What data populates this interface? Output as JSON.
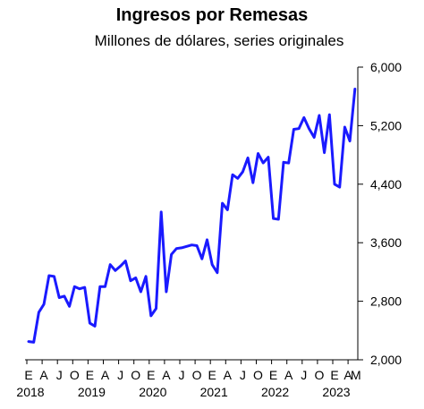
{
  "chart_data": {
    "type": "line",
    "title": "Ingresos por Remesas",
    "subtitle": "Millones de dólares, series originales",
    "xlabel": "",
    "ylabel": "",
    "ylim": [
      2000,
      6000
    ],
    "yticks": [
      2000,
      2800,
      3600,
      4400,
      5200,
      6000
    ],
    "ytick_labels": [
      "2,000",
      "2,800",
      "3,600",
      "4,400",
      "5,200",
      "6,000"
    ],
    "y_axis_side": "right",
    "grid": false,
    "legend": "none",
    "line_color": "#1a1aff",
    "x_month_labels": [
      "E",
      "A",
      "J",
      "O",
      "E",
      "A",
      "J",
      "O",
      "E",
      "A",
      "J",
      "O",
      "E",
      "A",
      "J",
      "O",
      "E",
      "A",
      "J",
      "O",
      "E",
      "A",
      "M"
    ],
    "x_year_labels": [
      "2018",
      "2019",
      "2020",
      "2021",
      "2022",
      "2023"
    ],
    "series": [
      {
        "values": [
          2250,
          2240,
          2650,
          2760,
          3150,
          3140,
          2850,
          2870,
          2730,
          3000,
          2970,
          2990,
          2500,
          2460,
          3000,
          3000,
          3300,
          3220,
          3280,
          3350,
          3080,
          3120,
          2930,
          3140,
          2600,
          2700,
          4020,
          2930,
          3440,
          3520,
          3530,
          3550,
          3570,
          3560,
          3380,
          3640,
          3300,
          3190,
          4140,
          4050,
          4530,
          4480,
          4570,
          4760,
          4420,
          4820,
          4690,
          4770,
          3930,
          3920,
          4700,
          4690,
          5150,
          5160,
          5310,
          5160,
          5040,
          5340,
          4830,
          5350,
          4400,
          4360,
          5180,
          4990,
          5700
        ]
      }
    ]
  }
}
